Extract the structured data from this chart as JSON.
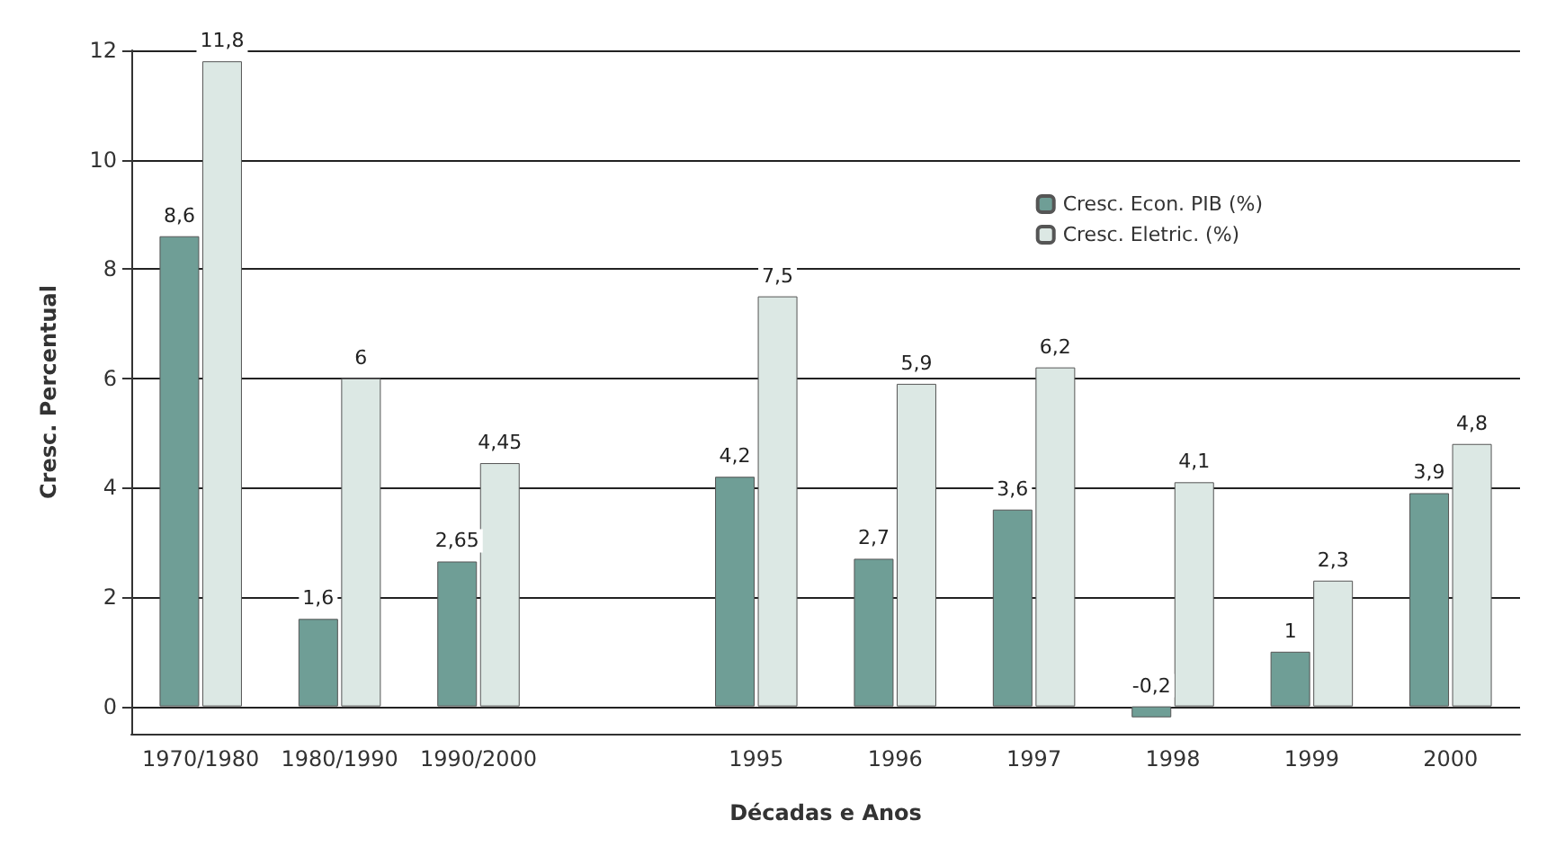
{
  "chart_data": {
    "type": "bar",
    "xlabel": "Décadas e Anos",
    "ylabel": "Cresc. Percentual",
    "categories": [
      "1970/1980",
      "1980/1990",
      "1990/2000",
      null,
      "1995",
      "1996",
      "1997",
      "1998",
      "1999",
      "2000"
    ],
    "series": [
      {
        "name": "Cresc. Econ. PIB (%)",
        "color": "#6f9e96",
        "values": [
          8.6,
          1.6,
          2.65,
          null,
          4.2,
          2.7,
          3.6,
          -0.2,
          1,
          3.9
        ],
        "value_labels": [
          "8,6",
          "1,6",
          "2,65",
          null,
          "4,2",
          "2,7",
          "3,6",
          "-0,2",
          "1",
          "3,9"
        ]
      },
      {
        "name": "Cresc. Eletric. (%)",
        "color": "#dce8e4",
        "values": [
          11.8,
          6,
          4.45,
          null,
          7.5,
          5.9,
          6.2,
          4.1,
          2.3,
          4.8
        ],
        "value_labels": [
          "11,8",
          "6",
          "4,45",
          null,
          "7,5",
          "5,9",
          "6,2",
          "4,1",
          "2,3",
          "4,8"
        ]
      }
    ],
    "ylim": [
      -0.5,
      12
    ],
    "yticks": [
      0,
      2,
      4,
      6,
      8,
      10,
      12
    ],
    "grid": "y",
    "legend": "top right"
  }
}
